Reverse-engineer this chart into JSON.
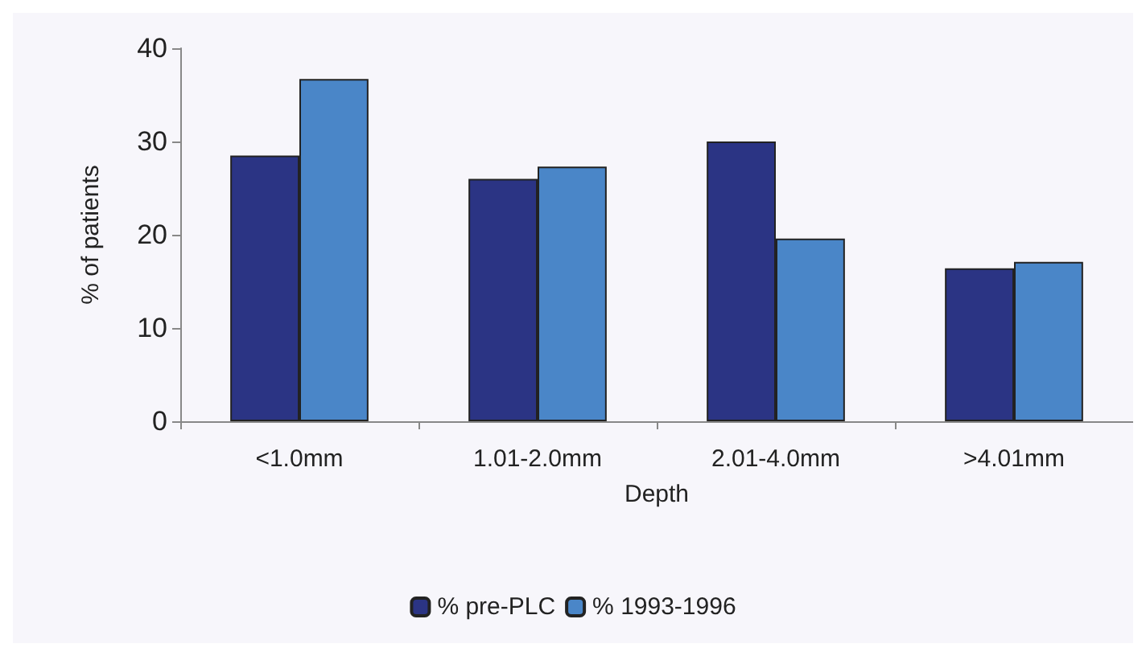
{
  "chart_data": {
    "type": "bar",
    "xlabel": "Depth",
    "ylabel": "% of patients",
    "categories": [
      "<1.0mm",
      "1.01-2.0mm",
      "2.01-4.0mm",
      ">4.01mm"
    ],
    "series": [
      {
        "name": "% pre-PLC",
        "color": "#2b3484",
        "values": [
          28.5,
          26.0,
          30.0,
          16.4
        ]
      },
      {
        "name": "% 1993-1996",
        "color": "#4a86c8",
        "values": [
          36.7,
          27.3,
          19.6,
          17.1
        ]
      }
    ],
    "ylim": [
      0,
      40
    ],
    "yticks": [
      0,
      10,
      20,
      30,
      40
    ],
    "grid": false,
    "legend": "bottom"
  }
}
